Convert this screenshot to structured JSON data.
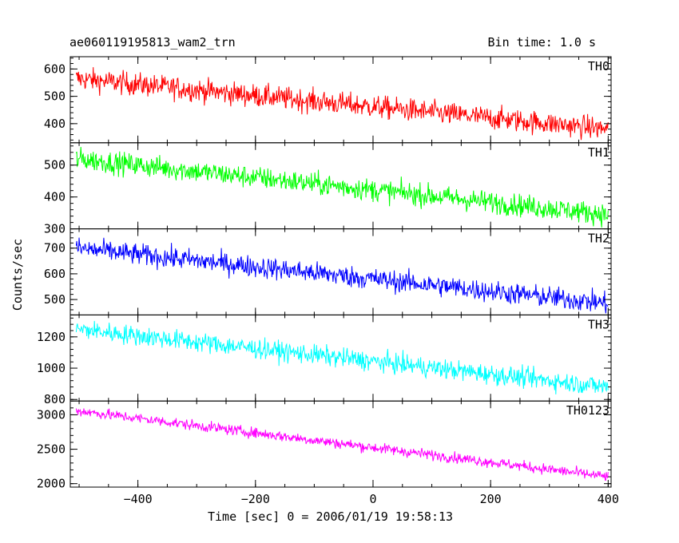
{
  "header": {
    "title": "ae060119195813_wam2_trn",
    "bin_time": "Bin time: 1.0 s"
  },
  "chart_data": {
    "type": "line",
    "xlabel": "Time [sec] 0 = 2006/01/19 19:58:13",
    "ylabel": "Counts/sec",
    "xlim": [
      -515,
      405
    ],
    "x_ticks": [
      -400,
      -200,
      0,
      200,
      400
    ],
    "x_tick_labels": [
      "−400",
      "−200",
      "0",
      "200",
      "400"
    ],
    "x_range_data": [
      -505,
      400
    ],
    "panels": [
      {
        "name": "TH0",
        "color": "#ff0000",
        "ylim": [
          330,
          645
        ],
        "y_ticks": [
          400,
          500,
          600
        ],
        "y_tick_labels": [
          "400",
          "500",
          "600"
        ],
        "start_value": 565,
        "end_value": 380,
        "noise": 30
      },
      {
        "name": "TH1",
        "color": "#00ff00",
        "ylim": [
          300,
          570
        ],
        "y_ticks": [
          300,
          400,
          500
        ],
        "y_tick_labels": [
          "300",
          "400",
          "500"
        ],
        "start_value": 520,
        "end_value": 345,
        "noise": 25
      },
      {
        "name": "TH2",
        "color": "#0000ff",
        "ylim": [
          440,
          775
        ],
        "y_ticks": [
          500,
          600,
          700
        ],
        "y_tick_labels": [
          "500",
          "600",
          "700"
        ],
        "start_value": 700,
        "end_value": 485,
        "noise": 30
      },
      {
        "name": "TH3",
        "color": "#00ffff",
        "ylim": [
          790,
          1340
        ],
        "y_ticks": [
          800,
          1000,
          1200
        ],
        "y_tick_labels": [
          "800",
          "1000",
          "1200"
        ],
        "start_value": 1250,
        "end_value": 880,
        "noise": 45
      },
      {
        "name": "TH0123",
        "color": "#ff00ff",
        "ylim": [
          1950,
          3200
        ],
        "y_ticks": [
          2000,
          2500,
          3000
        ],
        "y_tick_labels": [
          "2000",
          "2500",
          "3000"
        ],
        "start_value": 3060,
        "end_value": 2100,
        "noise": 55
      }
    ]
  }
}
